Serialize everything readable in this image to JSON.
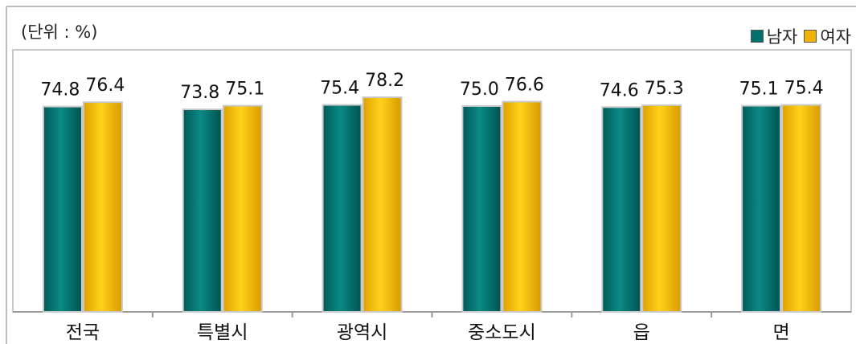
{
  "chart_data": {
    "type": "bar",
    "unit_label": "(단위 : %)",
    "categories": [
      "전국",
      "특별시",
      "광역시",
      "중소도시",
      "읍",
      "면"
    ],
    "series": [
      {
        "name": "남자",
        "color": "#00706e",
        "values": [
          74.8,
          73.8,
          75.4,
          75.0,
          74.6,
          75.1
        ]
      },
      {
        "name": "여자",
        "color": "#f0b400",
        "values": [
          76.4,
          75.1,
          78.2,
          76.6,
          75.3,
          75.4
        ]
      }
    ],
    "value_labels": [
      [
        "74.8",
        "73.8",
        "75.4",
        "75.0",
        "74.6",
        "75.1"
      ],
      [
        "76.4",
        "75.1",
        "78.2",
        "76.6",
        "75.3",
        "75.4"
      ]
    ],
    "ylim": [
      0,
      78.2
    ],
    "legend_position": "top-right",
    "grid": false
  }
}
